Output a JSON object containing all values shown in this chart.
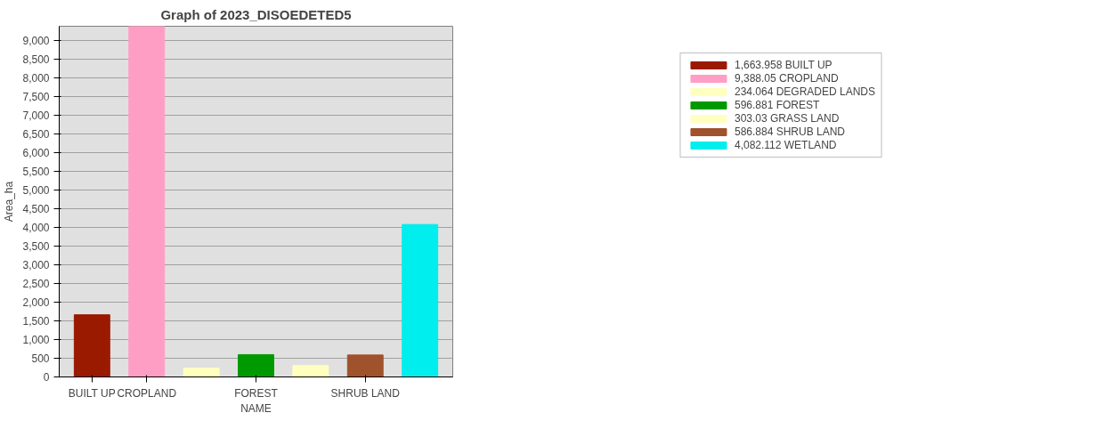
{
  "chart_data": {
    "type": "bar",
    "title": "Graph of 2023_DISOEDETED5",
    "xlabel": "NAME",
    "ylabel": "Area_ha",
    "categories": [
      "BUILT UP",
      "CROPLAND",
      null,
      "FOREST",
      null,
      "SHRUB LAND",
      null
    ],
    "series": [
      {
        "name": "1,663.958 BUILT UP",
        "color": "#9a1a00",
        "values": [
          1663.958,
          null,
          null,
          null,
          null,
          null,
          null
        ]
      },
      {
        "name": "9,388.05 CROPLAND",
        "color": "#ff9ec4",
        "values": [
          null,
          9388.05,
          null,
          null,
          null,
          null,
          null
        ]
      },
      {
        "name": "234.064 DEGRADED LANDS",
        "color": "#ffffc0",
        "values": [
          null,
          null,
          234.064,
          null,
          null,
          null,
          null
        ]
      },
      {
        "name": "596.881 FOREST",
        "color": "#009a00",
        "values": [
          null,
          null,
          null,
          596.881,
          null,
          null,
          null
        ]
      },
      {
        "name": "303.03 GRASS LAND",
        "color": "#ffffc0",
        "values": [
          null,
          null,
          null,
          null,
          303.03,
          null,
          null
        ]
      },
      {
        "name": "586.884 SHRUB LAND",
        "color": "#a0522d",
        "values": [
          null,
          null,
          null,
          null,
          null,
          586.884,
          null
        ]
      },
      {
        "name": "4,082.112 WETLAND",
        "color": "#00eeee",
        "values": [
          null,
          null,
          null,
          null,
          null,
          null,
          4082.112
        ]
      }
    ],
    "ylim": [
      0,
      9388.05
    ],
    "yticks": [
      0,
      {
        "value": 500,
        "label": "500"
      },
      {
        "value": 1000,
        "label": "1,000"
      },
      {
        "value": 1500,
        "label": "1,500"
      },
      {
        "value": 2000,
        "label": "2,000"
      },
      {
        "value": 2500,
        "label": "2,500"
      },
      {
        "value": 3000,
        "label": "3,000"
      },
      {
        "value": 3500,
        "label": "3,500"
      },
      {
        "value": 4000,
        "label": "4,000"
      },
      {
        "value": 4500,
        "label": "4,500"
      },
      {
        "value": 5000,
        "label": "5,000"
      },
      {
        "value": 5500,
        "label": "5,500"
      },
      {
        "value": 6000,
        "label": "6,000"
      },
      {
        "value": 6500,
        "label": "6,500"
      },
      {
        "value": 7000,
        "label": "7,000"
      },
      {
        "value": 7500,
        "label": "7,500"
      },
      {
        "value": 8000,
        "label": "8,000"
      },
      {
        "value": 8500,
        "label": "8,500"
      },
      {
        "value": 9000,
        "label": "9,000"
      }
    ],
    "grid": "y",
    "legend": "top right"
  }
}
